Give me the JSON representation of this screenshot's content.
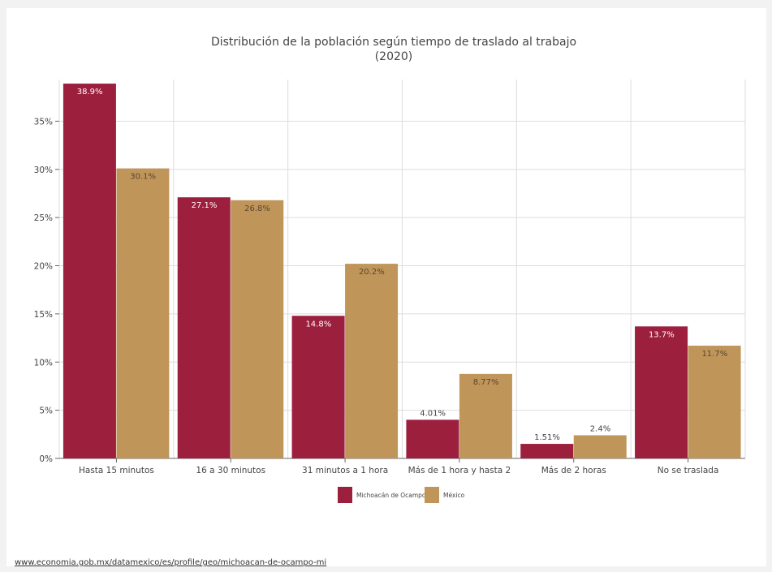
{
  "source_link": "www.economia.gob.mx/datamexico/es/profile/geo/michoacan-de-ocampo-mi",
  "colors": {
    "series_1": "#9c1f3d",
    "series_2": "#bf955a",
    "grid": "#dddddd",
    "axis": "#666666",
    "text": "#444444"
  },
  "chart_data": {
    "type": "bar",
    "title": "Distribución de la población según tiempo de traslado al trabajo",
    "subtitle": "(2020)",
    "xlabel": "",
    "ylabel": "",
    "ylim": [
      0,
      40
    ],
    "yticks": [
      0,
      5,
      10,
      15,
      20,
      25,
      30,
      35
    ],
    "ytick_labels": [
      "0%",
      "5%",
      "10%",
      "15%",
      "20%",
      "25%",
      "30%",
      "35%"
    ],
    "grid": true,
    "legend_position": "bottom-center",
    "categories": [
      "Hasta 15 minutos",
      "16 a 30 minutos",
      "31 minutos a 1 hora",
      "Más de 1 hora y hasta 2",
      "Más de 2 horas",
      "No se traslada"
    ],
    "series": [
      {
        "name": "Michoacán de Ocampo",
        "values": [
          38.9,
          27.1,
          14.8,
          4.01,
          1.51,
          13.7
        ],
        "labels": [
          "38.9%",
          "27.1%",
          "14.8%",
          "4.01%",
          "1.51%",
          "13.7%"
        ]
      },
      {
        "name": "México",
        "values": [
          30.1,
          26.8,
          20.2,
          8.77,
          2.4,
          11.7
        ],
        "labels": [
          "30.1%",
          "26.8%",
          "20.2%",
          "8.77%",
          "2.4%",
          "11.7%"
        ]
      }
    ]
  }
}
